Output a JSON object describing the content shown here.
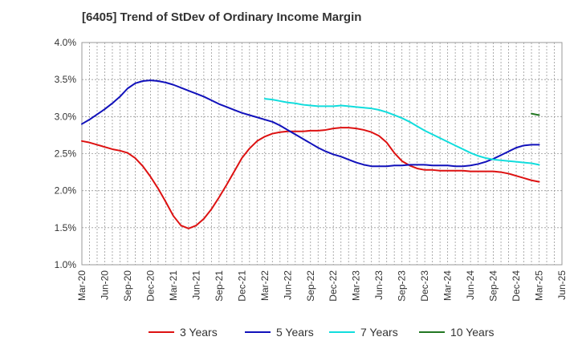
{
  "chart_data": {
    "type": "line",
    "title": "[6405]  Trend of StDev of Ordinary Income Margin",
    "xlabel": "",
    "ylabel": "",
    "x_ticks": [
      "Mar-20",
      "Jun-20",
      "Sep-20",
      "Dec-20",
      "Mar-21",
      "Jun-21",
      "Sep-21",
      "Dec-21",
      "Mar-22",
      "Jun-22",
      "Sep-22",
      "Dec-22",
      "Mar-23",
      "Jun-23",
      "Sep-23",
      "Dec-23",
      "Mar-24",
      "Jun-24",
      "Sep-24",
      "Dec-24",
      "Mar-25",
      "Jun-25"
    ],
    "y_ticks": [
      "1.0%",
      "1.5%",
      "2.0%",
      "2.5%",
      "3.0%",
      "3.5%",
      "4.0%"
    ],
    "ylim": [
      1.0,
      4.0
    ],
    "grid": true,
    "legend_position": "bottom",
    "series": [
      {
        "name": "3 Years",
        "color": "#dd1111",
        "x": [
          "Mar-20",
          "Apr-20",
          "May-20",
          "Jun-20",
          "Jul-20",
          "Aug-20",
          "Sep-20",
          "Oct-20",
          "Nov-20",
          "Dec-20",
          "Jan-21",
          "Feb-21",
          "Mar-21",
          "Apr-21",
          "May-21",
          "Jun-21",
          "Jul-21",
          "Aug-21",
          "Sep-21",
          "Oct-21",
          "Nov-21",
          "Dec-21",
          "Jan-22",
          "Feb-22",
          "Mar-22",
          "Apr-22",
          "May-22",
          "Jun-22",
          "Jul-22",
          "Aug-22",
          "Sep-22",
          "Oct-22",
          "Nov-22",
          "Dec-22",
          "Jan-23",
          "Feb-23",
          "Mar-23",
          "Apr-23",
          "May-23",
          "Jun-23",
          "Jul-23",
          "Aug-23",
          "Sep-23",
          "Oct-23",
          "Nov-23",
          "Dec-23",
          "Jan-24",
          "Feb-24",
          "Mar-24",
          "Apr-24",
          "May-24",
          "Jun-24",
          "Jul-24",
          "Aug-24",
          "Sep-24",
          "Oct-24",
          "Nov-24",
          "Dec-24",
          "Jan-25",
          "Feb-25",
          "Mar-25"
        ],
        "values": [
          2.67,
          2.65,
          2.62,
          2.59,
          2.56,
          2.54,
          2.51,
          2.44,
          2.33,
          2.19,
          2.03,
          1.85,
          1.66,
          1.53,
          1.49,
          1.53,
          1.62,
          1.75,
          1.91,
          2.08,
          2.26,
          2.44,
          2.57,
          2.67,
          2.73,
          2.77,
          2.79,
          2.8,
          2.8,
          2.8,
          2.81,
          2.81,
          2.82,
          2.84,
          2.85,
          2.85,
          2.84,
          2.82,
          2.79,
          2.74,
          2.65,
          2.51,
          2.4,
          2.34,
          2.3,
          2.28,
          2.28,
          2.27,
          2.27,
          2.27,
          2.27,
          2.26,
          2.26,
          2.26,
          2.26,
          2.25,
          2.23,
          2.2,
          2.17,
          2.14,
          2.12
        ]
      },
      {
        "name": "5 Years",
        "color": "#1111bb",
        "x": [
          "Mar-20",
          "Apr-20",
          "May-20",
          "Jun-20",
          "Jul-20",
          "Aug-20",
          "Sep-20",
          "Oct-20",
          "Nov-20",
          "Dec-20",
          "Jan-21",
          "Feb-21",
          "Mar-21",
          "Apr-21",
          "May-21",
          "Jun-21",
          "Jul-21",
          "Aug-21",
          "Sep-21",
          "Oct-21",
          "Nov-21",
          "Dec-21",
          "Jan-22",
          "Feb-22",
          "Mar-22",
          "Apr-22",
          "May-22",
          "Jun-22",
          "Jul-22",
          "Aug-22",
          "Sep-22",
          "Oct-22",
          "Nov-22",
          "Dec-22",
          "Jan-23",
          "Feb-23",
          "Mar-23",
          "Apr-23",
          "May-23",
          "Jun-23",
          "Jul-23",
          "Aug-23",
          "Sep-23",
          "Oct-23",
          "Nov-23",
          "Dec-23",
          "Jan-24",
          "Feb-24",
          "Mar-24",
          "Apr-24",
          "May-24",
          "Jun-24",
          "Jul-24",
          "Aug-24",
          "Sep-24",
          "Oct-24",
          "Nov-24",
          "Dec-24",
          "Jan-25",
          "Feb-25",
          "Mar-25"
        ],
        "values": [
          2.9,
          2.96,
          3.03,
          3.1,
          3.18,
          3.27,
          3.38,
          3.45,
          3.48,
          3.49,
          3.48,
          3.46,
          3.43,
          3.39,
          3.35,
          3.31,
          3.27,
          3.22,
          3.17,
          3.13,
          3.09,
          3.05,
          3.02,
          2.99,
          2.96,
          2.93,
          2.88,
          2.82,
          2.76,
          2.7,
          2.64,
          2.58,
          2.53,
          2.49,
          2.46,
          2.42,
          2.38,
          2.35,
          2.33,
          2.33,
          2.33,
          2.34,
          2.34,
          2.35,
          2.35,
          2.35,
          2.34,
          2.34,
          2.34,
          2.33,
          2.33,
          2.34,
          2.36,
          2.39,
          2.43,
          2.48,
          2.53,
          2.58,
          2.61,
          2.62,
          2.62
        ]
      },
      {
        "name": "7 Years",
        "color": "#11dddd",
        "x": [
          "Mar-22",
          "Apr-22",
          "May-22",
          "Jun-22",
          "Jul-22",
          "Aug-22",
          "Sep-22",
          "Oct-22",
          "Nov-22",
          "Dec-22",
          "Jan-23",
          "Feb-23",
          "Mar-23",
          "Apr-23",
          "May-23",
          "Jun-23",
          "Jul-23",
          "Aug-23",
          "Sep-23",
          "Oct-23",
          "Nov-23",
          "Dec-23",
          "Jan-24",
          "Feb-24",
          "Mar-24",
          "Apr-24",
          "May-24",
          "Jun-24",
          "Jul-24",
          "Aug-24",
          "Sep-24",
          "Oct-24",
          "Nov-24",
          "Dec-24",
          "Jan-25",
          "Feb-25",
          "Mar-25"
        ],
        "values": [
          3.24,
          3.23,
          3.21,
          3.19,
          3.18,
          3.16,
          3.15,
          3.14,
          3.14,
          3.14,
          3.15,
          3.14,
          3.13,
          3.12,
          3.11,
          3.09,
          3.06,
          3.02,
          2.98,
          2.93,
          2.87,
          2.81,
          2.76,
          2.71,
          2.66,
          2.61,
          2.56,
          2.51,
          2.47,
          2.44,
          2.42,
          2.41,
          2.4,
          2.39,
          2.38,
          2.37,
          2.35
        ]
      },
      {
        "name": "10 Years",
        "color": "#227722",
        "x": [
          "Feb-25",
          "Mar-25"
        ],
        "values": [
          3.04,
          3.02
        ]
      }
    ]
  }
}
